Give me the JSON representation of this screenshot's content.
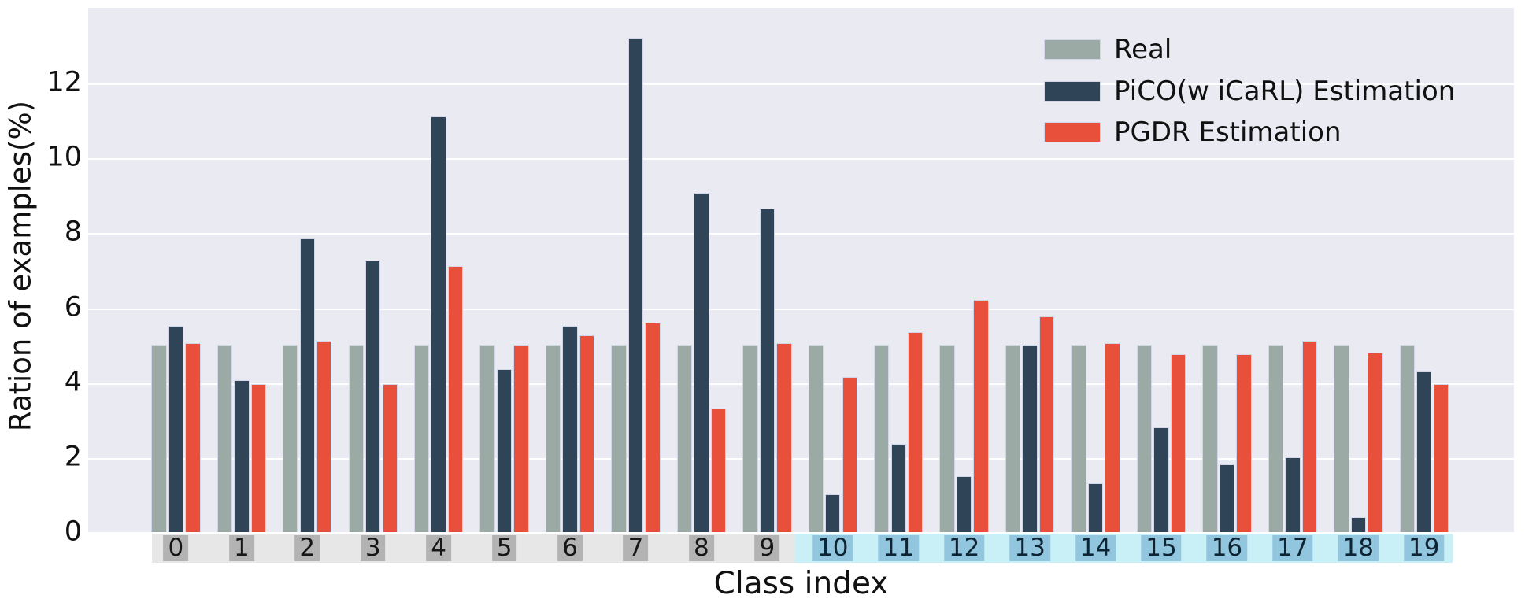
{
  "chart_data": {
    "type": "bar",
    "title": "",
    "xlabel": "Class index",
    "ylabel": "Ration of examples(%)",
    "categories": [
      "0",
      "1",
      "2",
      "3",
      "4",
      "5",
      "6",
      "7",
      "8",
      "9",
      "10",
      "11",
      "12",
      "13",
      "14",
      "15",
      "16",
      "17",
      "18",
      "19"
    ],
    "series": [
      {
        "name": "Real",
        "color": "#9CAAA6",
        "values": [
          5.0,
          5.0,
          5.0,
          5.0,
          5.0,
          5.0,
          5.0,
          5.0,
          5.0,
          5.0,
          5.0,
          5.0,
          5.0,
          5.0,
          5.0,
          5.0,
          5.0,
          5.0,
          5.0,
          5.0
        ]
      },
      {
        "name": "PiCO(w iCaRL) Estimation",
        "color": "#2F4457",
        "values": [
          5.5,
          4.05,
          7.85,
          7.25,
          11.1,
          4.35,
          5.5,
          13.2,
          9.05,
          8.65,
          1.0,
          2.35,
          1.5,
          5.0,
          1.3,
          2.8,
          1.8,
          2.0,
          0.4,
          4.3
        ]
      },
      {
        "name": "PGDR Estimation",
        "color": "#E8503C",
        "values": [
          5.05,
          3.95,
          5.1,
          3.95,
          7.1,
          5.0,
          5.25,
          5.6,
          3.3,
          5.05,
          4.15,
          5.35,
          6.2,
          5.75,
          5.05,
          4.75,
          4.75,
          5.1,
          4.8,
          3.95
        ]
      }
    ],
    "ylim": [
      0,
      14
    ],
    "yticks": [
      0,
      2,
      4,
      6,
      8,
      10,
      12
    ],
    "grid": true,
    "legend_position": "upper right",
    "plot_background": "#EAEAF2",
    "gridline_color": "#FFFFFF",
    "bar_edge_color": "#D3D6E8",
    "x_bands": [
      {
        "name": "old-classes",
        "from": 0,
        "to": 9,
        "strip_color": "#E7E7E7",
        "label_box_color": "#B3B3B3",
        "label_text_color": "#161616"
      },
      {
        "name": "new-classes",
        "from": 10,
        "to": 19,
        "strip_color": "#C9F0F7",
        "label_box_color": "#92C5DE",
        "label_text_color": "#0E2433"
      }
    ]
  }
}
